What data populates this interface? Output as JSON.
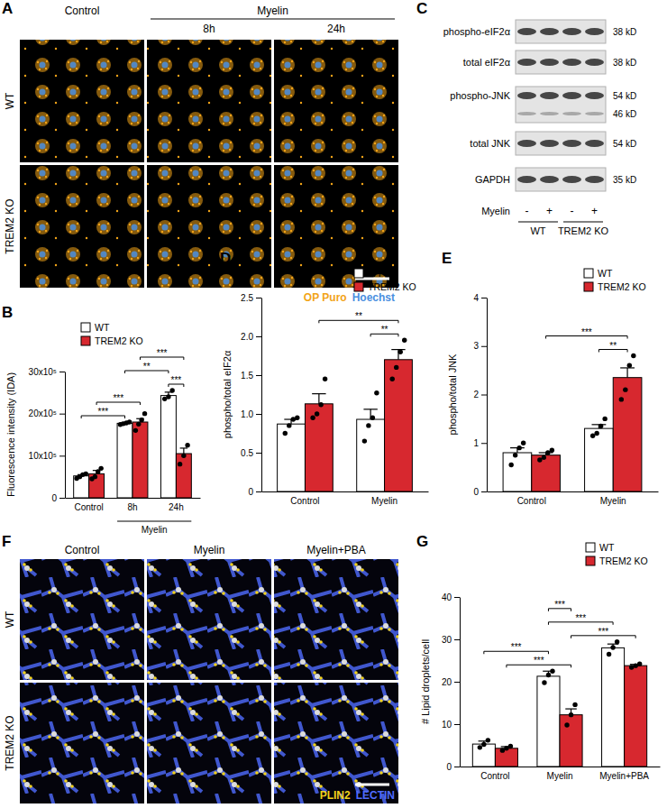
{
  "microscopy": [
    {
      "panel_label": "A",
      "header_groups": [
        {
          "label": "Control",
          "columns": [
            0
          ]
        },
        {
          "label": "Myelin",
          "columns": [
            1,
            2
          ]
        }
      ],
      "subheaders": [
        null,
        "8h",
        "24h"
      ],
      "rows": [
        "WT",
        "TREM2 KO"
      ],
      "stains": [
        {
          "name": "OP Puro",
          "color": "#f2a417"
        },
        {
          "name": "Hoechst",
          "color": "#4a8fe0"
        }
      ]
    },
    {
      "panel_label": "F",
      "column_headers": [
        "Control",
        "Myelin",
        "Myelin+PBA"
      ],
      "rows": [
        "WT",
        "TREM2 KO"
      ],
      "stains": [
        {
          "name": "PLIN2",
          "color": "#f2d21b"
        },
        {
          "name": "LECTIN",
          "color": "#4f6cff"
        }
      ]
    }
  ],
  "blot": {
    "panel_label": "C",
    "rows": [
      {
        "label": "phospho-eIF2α",
        "mw": [
          "38 kD"
        ]
      },
      {
        "label": "total eIF2α",
        "mw": [
          "38 kD"
        ]
      },
      {
        "label": "phospho-JNK",
        "mw": [
          "54 kD",
          "46 kD"
        ]
      },
      {
        "label": "total JNK",
        "mw": [
          "54 kD"
        ]
      },
      {
        "label": "GAPDH",
        "mw": [
          "35 kD"
        ]
      }
    ],
    "treatment_label": "Myelin",
    "lanes": [
      "-",
      "+",
      "-",
      "+"
    ],
    "groups": [
      {
        "label": "WT",
        "lanes": [
          0,
          1
        ]
      },
      {
        "label": "TREM2 KO",
        "lanes": [
          2,
          3
        ]
      }
    ]
  },
  "chart_data": [
    {
      "type": "bar",
      "panel_label": "B",
      "categories": [
        "Control",
        "8h",
        "24h"
      ],
      "group_labels": [
        {
          "label": "Myelin",
          "categories": [
            "8h",
            "24h"
          ]
        }
      ],
      "y_label": "Fluorescence intensity (IDA)",
      "ylim": [
        0,
        3000000
      ],
      "yticks": [
        0,
        {
          "value": 1000000,
          "label": "10x10⁵"
        },
        {
          "value": 2000000,
          "label": "20x10⁵"
        },
        {
          "value": 3000000,
          "label": "30x10⁵"
        }
      ],
      "grid": false,
      "legend": "top-left",
      "series": [
        {
          "name": "WT",
          "color": "#ffffff",
          "values": [
            520000,
            1770000,
            2430000
          ],
          "errors": [
            30000,
            20000,
            80000
          ],
          "points": [
            [
              460000,
              500000,
              550000,
              570000
            ],
            [
              1740000,
              1760000,
              1780000,
              1800000
            ],
            [
              2350000,
              2400000,
              2550000
            ]
          ]
        },
        {
          "name": "TREM2 KO",
          "color": "#d7282f",
          "values": [
            570000,
            1800000,
            1050000
          ],
          "errors": [
            80000,
            80000,
            130000
          ],
          "points": [
            [
              450000,
              500000,
              620000,
              700000
            ],
            [
              1600000,
              1750000,
              1850000,
              2000000
            ],
            [
              800000,
              1000000,
              1250000
            ]
          ]
        }
      ],
      "significance": [
        {
          "from": [
            "Control",
            "WT"
          ],
          "to": [
            "8h",
            "WT"
          ],
          "label": "***"
        },
        {
          "from": [
            "Control",
            "TREM2 KO"
          ],
          "to": [
            "8h",
            "TREM2 KO"
          ],
          "label": "***"
        },
        {
          "from": [
            "24h",
            "WT"
          ],
          "to": [
            "24h",
            "TREM2 KO"
          ],
          "label": "***"
        },
        {
          "from": [
            "8h",
            "WT"
          ],
          "to": [
            "24h",
            "WT"
          ],
          "label": "**"
        },
        {
          "from": [
            "8h",
            "TREM2 KO"
          ],
          "to": [
            "24h",
            "TREM2 KO"
          ],
          "label": "***"
        }
      ]
    },
    {
      "type": "bar",
      "panel_label": "D",
      "categories": [
        "Control",
        "Myelin"
      ],
      "y_label": "phospho/total eIF2α",
      "ylim": [
        0,
        2.5
      ],
      "yticks": [
        0,
        0.5,
        {
          "value": 1,
          "label": "1.0"
        },
        1.5,
        {
          "value": 2,
          "label": "2.0"
        },
        2.5
      ],
      "grid": false,
      "legend": "top-right",
      "series": [
        {
          "name": "WT",
          "color": "#ffffff",
          "values": [
            0.87,
            0.93
          ],
          "errors": [
            0.06,
            0.13
          ],
          "points": [
            [
              0.75,
              0.85,
              0.93,
              0.95
            ],
            [
              0.65,
              0.85,
              0.95,
              1.27
            ]
          ]
        },
        {
          "name": "TREM2 KO",
          "color": "#d7282f",
          "values": [
            1.13,
            1.7
          ],
          "errors": [
            0.13,
            0.13
          ],
          "points": [
            [
              0.95,
              1.0,
              1.12,
              1.45
            ],
            [
              1.45,
              1.6,
              1.8,
              1.95
            ]
          ]
        }
      ],
      "significance": [
        {
          "from": [
            "Myelin",
            "WT"
          ],
          "to": [
            "Myelin",
            "TREM2 KO"
          ],
          "label": "**"
        },
        {
          "from": [
            "Control",
            "TREM2 KO"
          ],
          "to": [
            "Myelin",
            "TREM2 KO"
          ],
          "label": "**"
        }
      ]
    },
    {
      "type": "bar",
      "panel_label": "E",
      "categories": [
        "Control",
        "Myelin"
      ],
      "y_label": "phospho/total JNK",
      "ylim": [
        0,
        4
      ],
      "yticks": [
        0,
        1,
        2,
        3,
        4
      ],
      "grid": false,
      "legend": "top-right",
      "series": [
        {
          "name": "WT",
          "color": "#ffffff",
          "values": [
            0.8,
            1.3
          ],
          "errors": [
            0.1,
            0.08
          ],
          "points": [
            [
              0.55,
              0.75,
              0.9,
              1.0
            ],
            [
              1.15,
              1.2,
              1.35,
              1.5
            ]
          ]
        },
        {
          "name": "TREM2 KO",
          "color": "#d7282f",
          "values": [
            0.75,
            2.35
          ],
          "errors": [
            0.05,
            0.2
          ],
          "points": [
            [
              0.65,
              0.7,
              0.8,
              0.85
            ],
            [
              1.9,
              2.1,
              2.6,
              2.8
            ]
          ]
        }
      ],
      "significance": [
        {
          "from": [
            "Myelin",
            "WT"
          ],
          "to": [
            "Myelin",
            "TREM2 KO"
          ],
          "label": "**"
        },
        {
          "from": [
            "Control",
            "TREM2 KO"
          ],
          "to": [
            "Myelin",
            "TREM2 KO"
          ],
          "label": "***"
        }
      ]
    },
    {
      "type": "bar",
      "panel_label": "G",
      "categories": [
        "Control",
        "Myelin",
        "Myelin+PBA"
      ],
      "y_label": "# Lipid droplets/cell",
      "ylim": [
        0,
        40
      ],
      "yticks": [
        0,
        10,
        20,
        30,
        40
      ],
      "grid": false,
      "legend": "top-right",
      "series": [
        {
          "name": "WT",
          "color": "#ffffff",
          "values": [
            5.3,
            21.3,
            28.0
          ],
          "errors": [
            0.7,
            1.2,
            0.9
          ],
          "points": [
            [
              4.5,
              5.2,
              6.2
            ],
            [
              19.8,
              21.6,
              22.5
            ],
            [
              26.5,
              28.1,
              29.4
            ]
          ]
        },
        {
          "name": "TREM2 KO",
          "color": "#d7282f",
          "values": [
            4.3,
            12.2,
            23.8
          ],
          "errors": [
            0.4,
            1.4,
            0.3
          ],
          "points": [
            [
              3.8,
              4.3,
              4.8
            ],
            [
              9.8,
              12.2,
              14.6
            ],
            [
              23.4,
              23.8,
              24.2
            ]
          ]
        }
      ],
      "significance": [
        {
          "from": [
            "Control",
            "TREM2 KO"
          ],
          "to": [
            "Myelin",
            "TREM2 KO"
          ],
          "label": "***"
        },
        {
          "from": [
            "Myelin",
            "TREM2 KO"
          ],
          "to": [
            "Myelin+PBA",
            "TREM2 KO"
          ],
          "label": "***"
        },
        {
          "from": [
            "Control",
            "WT"
          ],
          "to": [
            "Myelin",
            "WT"
          ],
          "label": "***"
        },
        {
          "from": [
            "Myelin",
            "WT"
          ],
          "to": [
            "Myelin+PBA",
            "WT"
          ],
          "label": "***"
        },
        {
          "from": [
            "Myelin",
            "WT"
          ],
          "to": [
            "Myelin",
            "TREM2 KO"
          ],
          "label": "***"
        }
      ]
    }
  ]
}
